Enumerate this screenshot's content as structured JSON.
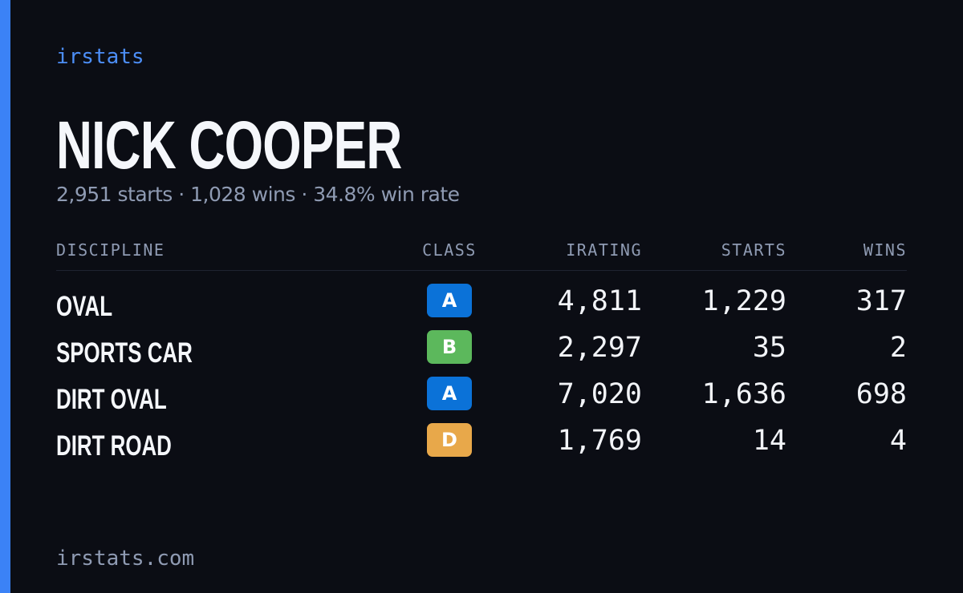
{
  "brand": "irstats",
  "driver": {
    "name": "NICK COOPER",
    "summary": "2,951 starts · 1,028 wins · 34.8% win rate"
  },
  "table": {
    "headers": [
      "DISCIPLINE",
      "CLASS",
      "IRATING",
      "STARTS",
      "WINS"
    ],
    "rows": [
      [
        "OVAL",
        "A",
        "4,811",
        "1,229",
        "317"
      ],
      [
        "SPORTS CAR",
        "B",
        "2,297",
        "35",
        "2"
      ],
      [
        "DIRT OVAL",
        "A",
        "7,020",
        "1,636",
        "698"
      ],
      [
        "DIRT ROAD",
        "D",
        "1,769",
        "14",
        "4"
      ]
    ]
  },
  "footer": "irstats.com"
}
